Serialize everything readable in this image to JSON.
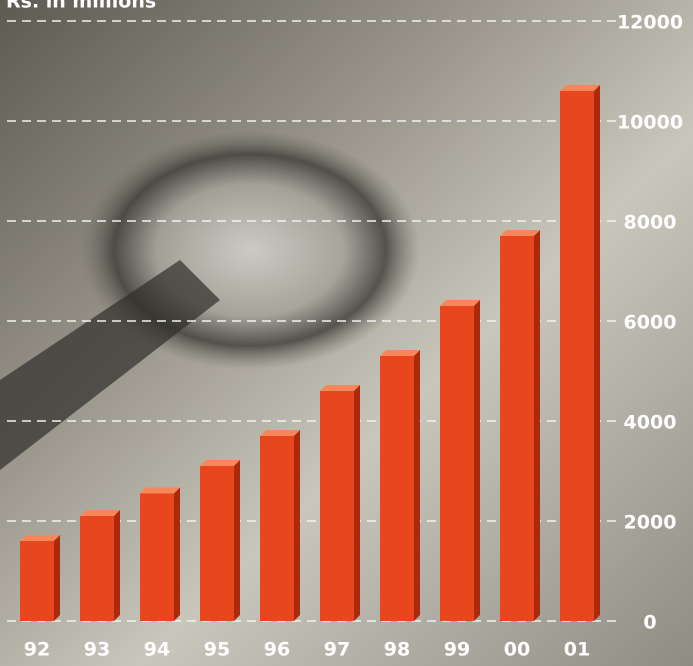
{
  "chart_data": {
    "type": "bar",
    "title": "Rs. in millions",
    "categories": [
      "92",
      "93",
      "94",
      "95",
      "96",
      "97",
      "98",
      "99",
      "00",
      "01"
    ],
    "values": [
      1600,
      2100,
      2550,
      3100,
      3700,
      4600,
      5300,
      6300,
      7700,
      10600
    ],
    "color": "#e8461c",
    "ylim": [
      0,
      12000
    ],
    "yticks": [
      0,
      2000,
      4000,
      6000,
      8000,
      10000,
      12000
    ],
    "grid": true
  }
}
